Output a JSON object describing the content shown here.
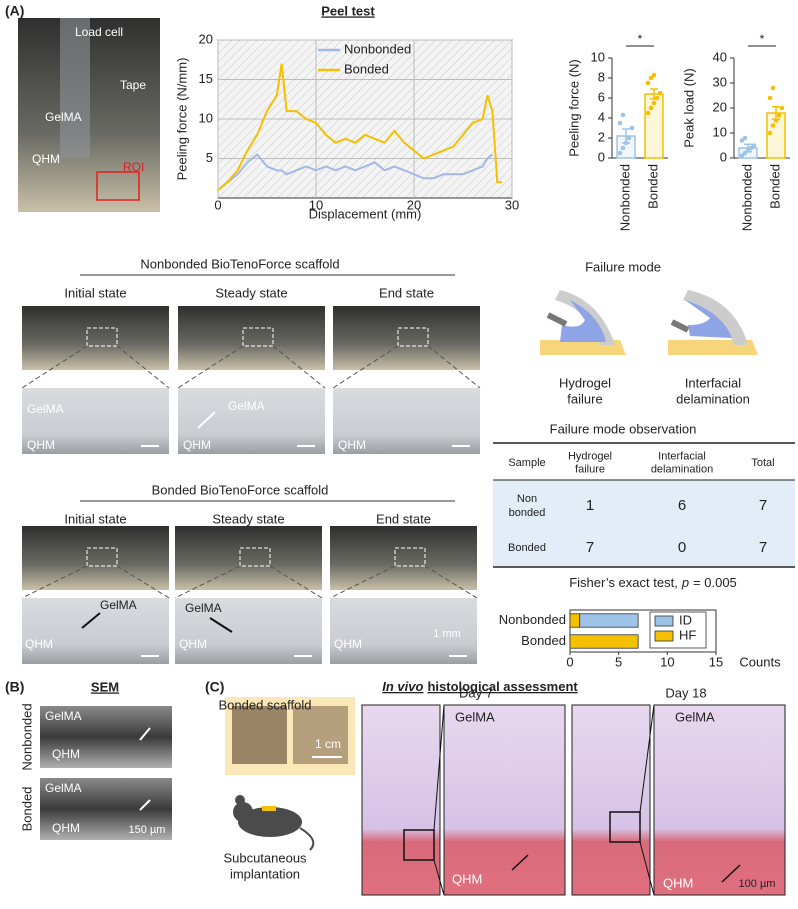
{
  "panel_labels": [
    "(A)",
    "(B)",
    "(C)"
  ],
  "photo_a": {
    "labels": [
      "Load cell",
      "Tape",
      "GelMA",
      "QHM",
      "ROI"
    ]
  },
  "chart_data": [
    {
      "type": "line",
      "title": "Peel test",
      "xlabel": "Displacement (mm)",
      "ylabel": "Peeling force (N/mm)",
      "x": [
        0,
        1,
        2,
        3,
        4,
        5,
        6,
        6.5,
        7,
        8,
        9,
        10,
        11,
        12,
        13,
        14,
        15,
        16,
        17,
        18,
        19,
        20,
        21,
        22,
        23,
        24,
        25,
        26,
        27,
        27.5,
        28,
        28.5,
        29
      ],
      "series": [
        {
          "name": "Nonbonded",
          "color": "#a4b8e8",
          "values": [
            1,
            2,
            3,
            4.5,
            5.5,
            4,
            3.5,
            3.5,
            3,
            3.5,
            4,
            3.5,
            4,
            3.5,
            4,
            3.5,
            4,
            4.5,
            3.5,
            4,
            3.5,
            3,
            2.5,
            2.5,
            3,
            3,
            3,
            3.5,
            4,
            5,
            5.5,
            null,
            null
          ]
        },
        {
          "name": "Bonded",
          "color": "#f5c000",
          "values": [
            1,
            2,
            3.5,
            6,
            8,
            11,
            13,
            17,
            11,
            11,
            10,
            9.5,
            8,
            7,
            7.5,
            7,
            8,
            7.5,
            7,
            8.5,
            7,
            6,
            5,
            5.5,
            6,
            6.5,
            8,
            9.5,
            10,
            13,
            11,
            2,
            2
          ]
        }
      ],
      "xlim": [
        0,
        30
      ],
      "ylim": [
        0,
        20
      ],
      "xticks": [
        0,
        10,
        20,
        30
      ],
      "yticks": [
        5,
        10,
        15,
        20
      ],
      "grid": true,
      "legend": "upper center"
    },
    {
      "type": "bar",
      "ylabel": "Peeling force (N)",
      "categories": [
        "Nonbonded",
        "Bonded"
      ],
      "values": [
        2.2,
        6.4
      ],
      "errors": [
        0.7,
        0.5
      ],
      "points": [
        [
          0.5,
          1,
          1.5,
          2,
          3,
          3.5,
          4.3
        ],
        [
          4.5,
          5,
          5.5,
          6,
          6.5,
          7.5,
          8,
          8.3
        ]
      ],
      "colors": [
        "#9dc3e6",
        "#f5c000"
      ],
      "ylim": [
        0,
        10
      ],
      "yticks": [
        0,
        2,
        4,
        6,
        8,
        10
      ],
      "significance": "*"
    },
    {
      "type": "bar",
      "ylabel": "Peak load (N)",
      "categories": [
        "Nonbonded",
        "Bonded"
      ],
      "values": [
        4,
        18
      ],
      "errors": [
        1.5,
        2.5
      ],
      "points": [
        [
          1,
          2,
          3,
          4,
          5,
          7,
          8
        ],
        [
          10,
          13,
          15,
          17,
          20,
          24,
          28
        ]
      ],
      "colors": [
        "#9dc3e6",
        "#f5c000"
      ],
      "ylim": [
        0,
        40
      ],
      "yticks": [
        0,
        10,
        20,
        30,
        40
      ],
      "significance": "*"
    },
    {
      "type": "barh_stacked",
      "xlabel": "Counts",
      "categories": [
        "Nonbonded",
        "Bonded"
      ],
      "series": [
        {
          "name": "ID",
          "color": "#9dc3e6",
          "values": [
            6,
            0
          ]
        },
        {
          "name": "HF",
          "color": "#f5c000",
          "values": [
            1,
            7
          ]
        }
      ],
      "xlim": [
        0,
        15
      ],
      "xticks": [
        0,
        5,
        10,
        15
      ],
      "legend": "upper right"
    }
  ],
  "scaffold": {
    "nonbonded": {
      "title": "Nonbonded BioTenoForce scaffold",
      "states": [
        "Initial state",
        "Steady state",
        "End state"
      ],
      "labels": [
        "GelMA",
        "QHM",
        "GelMA",
        "QHM",
        "QHM"
      ]
    },
    "bonded": {
      "title": "Bonded BioTenoForce scaffold",
      "states": [
        "Initial state",
        "Steady state",
        "End state"
      ],
      "labels": [
        "GelMA",
        "QHM",
        "GelMA",
        "QHM",
        "QHM"
      ],
      "scale_bar": "1 mm"
    }
  },
  "failure_mode": {
    "title": "Failure mode",
    "modes": [
      [
        "Hydrogel",
        "failure"
      ],
      [
        "Interfacial",
        "delamination"
      ]
    ]
  },
  "table": {
    "title": "Failure mode observation",
    "header": [
      "Sample",
      [
        "Hydrogel",
        "failure"
      ],
      [
        "Interfacial",
        "delamination"
      ],
      "Total"
    ],
    "rows": [
      [
        [
          "Non",
          "bonded"
        ],
        1,
        6,
        7
      ],
      [
        "Bonded",
        7,
        0,
        7
      ]
    ]
  },
  "fisher": {
    "text": "Fisher’s exact test,",
    "symbol": "p",
    "result": "= 0.005"
  },
  "sem": {
    "title": "SEM",
    "rows": [
      "Nonbonded",
      "Bonded"
    ],
    "labels": [
      "GelMA",
      "QHM",
      "GelMA",
      "QHM"
    ],
    "scale_bar": "150 µm"
  },
  "in_vivo": {
    "title_italic": "In vivo",
    "title_rest": "histological assessment",
    "scaffold_title": "Bonded scaffold",
    "scale_bar": "1 cm",
    "implant": [
      "Subcutaneous",
      "implantation"
    ],
    "days": [
      "Day 7",
      "Day 18"
    ],
    "labels": [
      "GelMA",
      "QHM",
      "GelMA",
      "QHM"
    ],
    "scale_bar_histo": "100 µm"
  }
}
